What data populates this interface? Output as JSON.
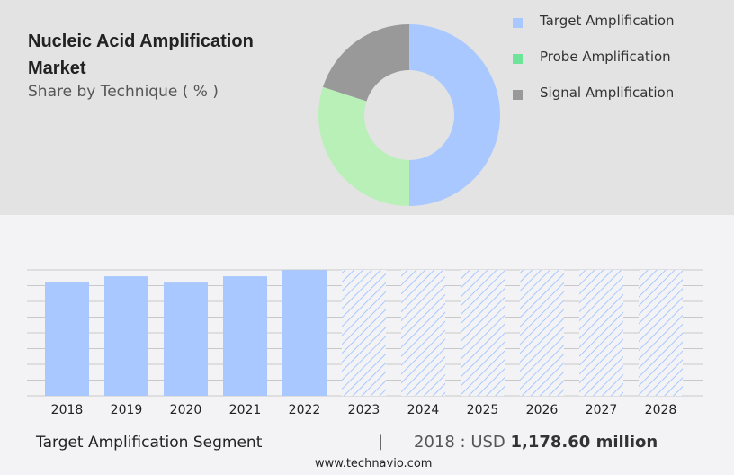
{
  "header": {
    "title": "Nucleic Acid Amplification Market",
    "subtitle": "Share by Technique ( % )"
  },
  "chart_data": [
    {
      "type": "pie",
      "title": "Share by Technique ( % )",
      "donut": true,
      "labels": [
        "Target Amplification",
        "Probe Amplification",
        "Signal Amplification"
      ],
      "values": [
        50,
        30,
        20
      ],
      "colors": [
        "#a8c8ff",
        "#b8f0b8",
        "#999999"
      ],
      "legend_colors": [
        "#a8c8ff",
        "#6ee39a",
        "#999999"
      ],
      "legend": "right"
    },
    {
      "type": "bar",
      "title": "Target Amplification Segment",
      "categories": [
        "2018",
        "2019",
        "2020",
        "2021",
        "2022",
        "2023",
        "2024",
        "2025",
        "2026",
        "2027",
        "2028"
      ],
      "values": [
        1178.6,
        1234,
        1169,
        1234,
        1299,
        null,
        null,
        null,
        null,
        null,
        null
      ],
      "forecast": [
        "2023",
        "2024",
        "2025",
        "2026",
        "2027",
        "2028"
      ],
      "ylim": [
        0,
        1300
      ],
      "grid": true,
      "color": "#a8c8ff"
    }
  ],
  "footer": {
    "segment": "Target Amplification Segment",
    "separator": "|",
    "value_prefix": "2018 : USD ",
    "value": "1,178.60 million",
    "site": "www.technavio.com"
  }
}
